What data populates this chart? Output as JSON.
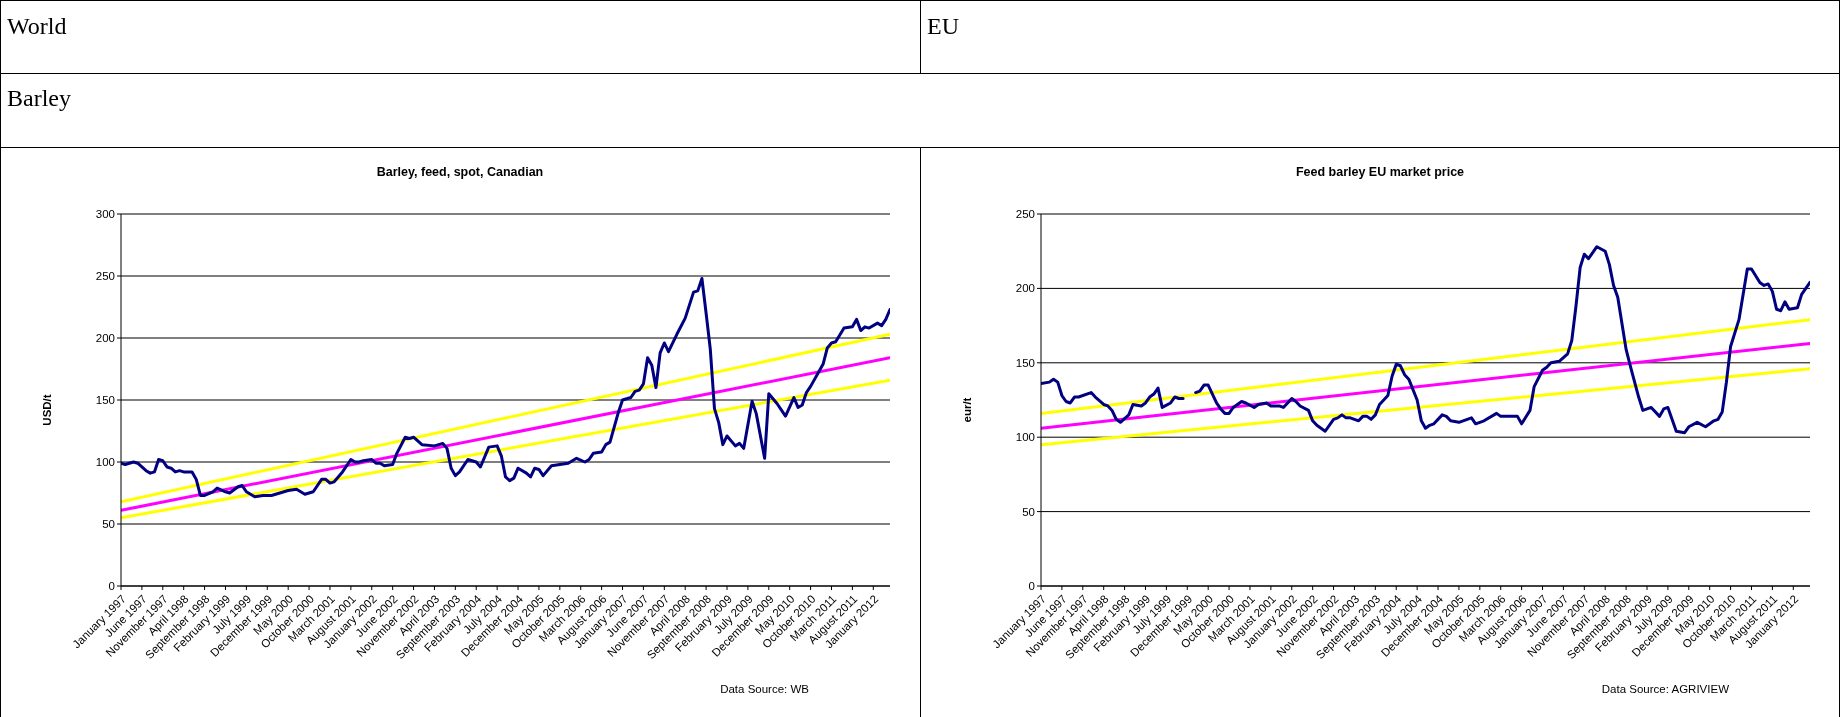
{
  "chart_data": [
    {
      "type": "line",
      "subtitle": "World",
      "title": "Barley, feed, spot, Canadian",
      "ylabel": "USD/t",
      "annotations": [
        "Barley",
        "Data Source: WB"
      ],
      "grid": "y",
      "xlim": [
        "1997-01",
        "2012-05"
      ],
      "xticks": [
        {
          "value": "1997-01",
          "label": "January 1997"
        },
        {
          "value": "1997-06",
          "label": "June 1997"
        },
        {
          "value": "1997-11",
          "label": "November 1997"
        },
        {
          "value": "1998-04",
          "label": "April 1998"
        },
        {
          "value": "1998-09",
          "label": "September 1998"
        },
        {
          "value": "1999-02",
          "label": "February 1999"
        },
        {
          "value": "1999-07",
          "label": "July 1999"
        },
        {
          "value": "1999-12",
          "label": "December 1999"
        },
        {
          "value": "2000-05",
          "label": "May 2000"
        },
        {
          "value": "2000-10",
          "label": "October 2000"
        },
        {
          "value": "2001-03",
          "label": "March 2001"
        },
        {
          "value": "2001-08",
          "label": "August 2001"
        },
        {
          "value": "2002-01",
          "label": "January 2002"
        },
        {
          "value": "2002-06",
          "label": "June 2002"
        },
        {
          "value": "2002-11",
          "label": "November 2002"
        },
        {
          "value": "2003-04",
          "label": "April 2003"
        },
        {
          "value": "2003-09",
          "label": "September 2003"
        },
        {
          "value": "2004-02",
          "label": "February 2004"
        },
        {
          "value": "2004-07",
          "label": "July 2004"
        },
        {
          "value": "2004-12",
          "label": "December 2004"
        },
        {
          "value": "2005-05",
          "label": "May 2005"
        },
        {
          "value": "2005-10",
          "label": "October 2005"
        },
        {
          "value": "2006-03",
          "label": "March 2006"
        },
        {
          "value": "2006-08",
          "label": "August 2006"
        },
        {
          "value": "2007-01",
          "label": "January 2007"
        },
        {
          "value": "2007-06",
          "label": "June 2007"
        },
        {
          "value": "2007-11",
          "label": "November 2007"
        },
        {
          "value": "2008-04",
          "label": "April 2008"
        },
        {
          "value": "2008-09",
          "label": "September 2008"
        },
        {
          "value": "2009-02",
          "label": "February 2009"
        },
        {
          "value": "2009-07",
          "label": "July 2009"
        },
        {
          "value": "2009-12",
          "label": "December 2009"
        },
        {
          "value": "2010-05",
          "label": "May 2010"
        },
        {
          "value": "2010-10",
          "label": "October 2010"
        },
        {
          "value": "2011-03",
          "label": "March 2011"
        },
        {
          "value": "2011-08",
          "label": "August 2011"
        },
        {
          "value": "2012-01",
          "label": "January 2012"
        }
      ],
      "ylim": [
        0,
        300
      ],
      "yticks": [
        0,
        50,
        100,
        150,
        200,
        250,
        300
      ],
      "series": [
        {
          "color": "#ffff00",
          "x": [
            "1997-01",
            "2012-05"
          ],
          "values": [
            68,
            203
          ]
        },
        {
          "color": "#ffff00",
          "x": [
            "1997-01",
            "2012-05"
          ],
          "values": [
            55,
            166
          ]
        },
        {
          "color": "#ff00ff",
          "x": [
            "1997-01",
            "2012-05"
          ],
          "values": [
            61,
            184
          ]
        },
        {
          "color": "#000080",
          "x": [
            "1997-01",
            "1997-02",
            "1997-04",
            "1997-05",
            "1997-07",
            "1997-08",
            "1997-09",
            "1997-10",
            "1997-11",
            "1997-12",
            "1998-01",
            "1998-02",
            "1998-03",
            "1998-04",
            "1998-06",
            "1998-07",
            "1998-08",
            "1998-09",
            "1998-11",
            "1998-12",
            "1999-02",
            "1999-03",
            "1999-05",
            "1999-06",
            "1999-07",
            "1999-09",
            "1999-11",
            "2000-01",
            "2000-03",
            "2000-05",
            "2000-07",
            "2000-09",
            "2000-11",
            "2001-01",
            "2001-02",
            "2001-03",
            "2001-04",
            "2001-06",
            "2001-08",
            "2001-09",
            "2001-10",
            "2001-11",
            "2002-01",
            "2002-02",
            "2002-03",
            "2002-04",
            "2002-06",
            "2002-07",
            "2002-09",
            "2002-10",
            "2002-11",
            "2003-01",
            "2003-04",
            "2003-06",
            "2003-07",
            "2003-08",
            "2003-09",
            "2003-10",
            "2003-12",
            "2004-02",
            "2004-03",
            "2004-05",
            "2004-07",
            "2004-08",
            "2004-09",
            "2004-10",
            "2004-11",
            "2004-12",
            "2005-02",
            "2005-03",
            "2005-04",
            "2005-05",
            "2005-06",
            "2005-08",
            "2005-10",
            "2005-12",
            "2006-02",
            "2006-04",
            "2006-05",
            "2006-06",
            "2006-08",
            "2006-09",
            "2006-10",
            "2006-12",
            "2007-01",
            "2007-03",
            "2007-04",
            "2007-05",
            "2007-06",
            "2007-07",
            "2007-08",
            "2007-09",
            "2007-10",
            "2007-11",
            "2007-12",
            "2008-02",
            "2008-04",
            "2008-06",
            "2008-07",
            "2008-08",
            "2008-09",
            "2008-10",
            "2008-11",
            "2008-12",
            "2009-01",
            "2009-02",
            "2009-04",
            "2009-05",
            "2009-06",
            "2009-08",
            "2009-09",
            "2009-11",
            "2009-12",
            "2010-02",
            "2010-04",
            "2010-06",
            "2010-07",
            "2010-08",
            "2010-09",
            "2010-10",
            "2010-12",
            "2011-01",
            "2011-02",
            "2011-03",
            "2011-04",
            "2011-06",
            "2011-08",
            "2011-09",
            "2011-10",
            "2011-11",
            "2011-12",
            "2012-02",
            "2012-03",
            "2012-04",
            "2012-05"
          ],
          "values": [
            99,
            98,
            100,
            99,
            93,
            91,
            92,
            102,
            101,
            96,
            95,
            92,
            93,
            92,
            92,
            86,
            73,
            73,
            76,
            79,
            76,
            75,
            80,
            81,
            76,
            72,
            73,
            73,
            75,
            77,
            78,
            74,
            76,
            86,
            86,
            83,
            84,
            92,
            102,
            100,
            100,
            101,
            102,
            99,
            99,
            97,
            98,
            107,
            120,
            119,
            120,
            114,
            113,
            115,
            111,
            95,
            89,
            92,
            102,
            100,
            96,
            112,
            113,
            105,
            88,
            85,
            87,
            95,
            91,
            88,
            95,
            94,
            89,
            97,
            98,
            99,
            103,
            100,
            102,
            107,
            108,
            114,
            116,
            140,
            150,
            152,
            157,
            158,
            163,
            184,
            178,
            160,
            188,
            196,
            189,
            203,
            216,
            237,
            238,
            248,
            220,
            191,
            143,
            132,
            114,
            121,
            113,
            115,
            111,
            149,
            139,
            103,
            155,
            147,
            137,
            152,
            144,
            146,
            156,
            161,
            173,
            179,
            192,
            196,
            197,
            208,
            209,
            215,
            206,
            209,
            208,
            212,
            210,
            215,
            223
          ]
        }
      ]
    },
    {
      "type": "line",
      "subtitle": "EU",
      "title": "Feed barley EU market price",
      "ylabel": "eur/t",
      "annotations": [
        "Data Source: AGRIVIEW"
      ],
      "grid": "y",
      "xlim": [
        "1997-01",
        "2012-05"
      ],
      "xticks": [
        {
          "value": "1997-01",
          "label": "January 1997"
        },
        {
          "value": "1997-06",
          "label": "June 1997"
        },
        {
          "value": "1997-11",
          "label": "November 1997"
        },
        {
          "value": "1998-04",
          "label": "April 1998"
        },
        {
          "value": "1998-09",
          "label": "September 1998"
        },
        {
          "value": "1999-02",
          "label": "February 1999"
        },
        {
          "value": "1999-07",
          "label": "July 1999"
        },
        {
          "value": "1999-12",
          "label": "December 1999"
        },
        {
          "value": "2000-05",
          "label": "May 2000"
        },
        {
          "value": "2000-10",
          "label": "October 2000"
        },
        {
          "value": "2001-03",
          "label": "March 2001"
        },
        {
          "value": "2001-08",
          "label": "August 2001"
        },
        {
          "value": "2002-01",
          "label": "January 2002"
        },
        {
          "value": "2002-06",
          "label": "June 2002"
        },
        {
          "value": "2002-11",
          "label": "November 2002"
        },
        {
          "value": "2003-04",
          "label": "April 2003"
        },
        {
          "value": "2003-09",
          "label": "September 2003"
        },
        {
          "value": "2004-02",
          "label": "February 2004"
        },
        {
          "value": "2004-07",
          "label": "July 2004"
        },
        {
          "value": "2004-12",
          "label": "December 2004"
        },
        {
          "value": "2005-05",
          "label": "May 2005"
        },
        {
          "value": "2005-10",
          "label": "October 2005"
        },
        {
          "value": "2006-03",
          "label": "March 2006"
        },
        {
          "value": "2006-08",
          "label": "August 2006"
        },
        {
          "value": "2007-01",
          "label": "January 2007"
        },
        {
          "value": "2007-06",
          "label": "June 2007"
        },
        {
          "value": "2007-11",
          "label": "November 2007"
        },
        {
          "value": "2008-04",
          "label": "April 2008"
        },
        {
          "value": "2008-09",
          "label": "September 2008"
        },
        {
          "value": "2009-02",
          "label": "February 2009"
        },
        {
          "value": "2009-07",
          "label": "July 2009"
        },
        {
          "value": "2009-12",
          "label": "December 2009"
        },
        {
          "value": "2010-05",
          "label": "May 2010"
        },
        {
          "value": "2010-10",
          "label": "October 2010"
        },
        {
          "value": "2011-03",
          "label": "March 2011"
        },
        {
          "value": "2011-08",
          "label": "August 2011"
        },
        {
          "value": "2012-01",
          "label": "January 2012"
        }
      ],
      "ylim": [
        0,
        250
      ],
      "yticks": [
        0,
        50,
        100,
        150,
        200,
        250
      ],
      "series": [
        {
          "color": "#ffff00",
          "x": [
            "1997-01",
            "2012-05"
          ],
          "values": [
            116,
            179
          ]
        },
        {
          "color": "#ffff00",
          "x": [
            "1997-01",
            "2012-05"
          ],
          "values": [
            95,
            146
          ]
        },
        {
          "color": "#ff00ff",
          "x": [
            "1997-01",
            "2012-05"
          ],
          "values": [
            106,
            163
          ]
        },
        {
          "color": "#000080",
          "x": [
            "1997-01",
            "1997-03",
            "1997-04",
            "1997-05",
            "1997-06",
            "1997-07",
            "1997-08",
            "1997-09",
            "1997-10",
            "1998-01",
            "1998-02",
            "1998-04",
            "1998-05",
            "1998-06",
            "1998-07",
            "1998-08",
            "1998-10",
            "1998-11",
            "1999-01",
            "1999-02",
            "1999-03",
            "1999-04",
            "1999-05",
            "1999-06",
            "1999-08",
            "1999-09",
            "1999-10",
            "1999-11",
            "1999-12",
            "2000-01",
            "2000-02",
            "2000-03",
            "2000-04",
            "2000-05",
            "2000-07",
            "2000-08",
            "2000-09",
            "2000-10",
            "2000-11",
            "2001-01",
            "2001-02",
            "2001-04",
            "2001-05",
            "2001-07",
            "2001-08",
            "2001-10",
            "2001-11",
            "2002-01",
            "2002-02",
            "2002-03",
            "2002-05",
            "2002-06",
            "2002-07",
            "2002-09",
            "2002-11",
            "2002-12",
            "2003-01",
            "2003-02",
            "2003-03",
            "2003-05",
            "2003-06",
            "2003-07",
            "2003-08",
            "2003-09",
            "2003-10",
            "2003-12",
            "2004-01",
            "2004-02",
            "2004-03",
            "2004-04",
            "2004-05",
            "2004-07",
            "2004-08",
            "2004-09",
            "2004-10",
            "2004-11",
            "2005-01",
            "2005-02",
            "2005-03",
            "2005-05",
            "2005-06",
            "2005-08",
            "2005-09",
            "2005-11",
            "2006-02",
            "2006-03",
            "2006-05",
            "2006-07",
            "2006-08",
            "2006-10",
            "2006-11",
            "2007-01",
            "2007-02",
            "2007-03",
            "2007-05",
            "2007-07",
            "2007-08",
            "2007-09",
            "2007-10",
            "2007-11",
            "2007-12",
            "2008-02",
            "2008-04",
            "2008-05",
            "2008-06",
            "2008-07",
            "2008-09",
            "2008-10",
            "2008-12",
            "2009-01",
            "2009-03",
            "2009-05",
            "2009-06",
            "2009-07",
            "2009-09",
            "2009-11",
            "2009-12",
            "2010-02",
            "2010-04",
            "2010-06",
            "2010-07",
            "2010-08",
            "2010-09",
            "2010-10",
            "2010-12",
            "2011-02",
            "2011-03",
            "2011-05",
            "2011-06",
            "2011-07",
            "2011-08",
            "2011-09",
            "2011-10",
            "2011-11",
            "2011-12",
            "2012-02",
            "2012-03",
            "2012-05"
          ],
          "values": [
            136,
            137,
            139,
            137,
            128,
            124,
            123,
            127,
            127,
            130,
            127,
            122,
            121,
            118,
            112,
            110,
            115,
            122,
            121,
            123,
            127,
            129,
            133,
            120,
            123,
            127,
            126,
            126,
            null,
            null,
            130,
            131,
            135,
            135,
            123,
            119,
            116,
            116,
            120,
            124,
            123,
            120,
            122,
            123,
            121,
            121,
            120,
            126,
            124,
            121,
            118,
            111,
            108,
            104,
            112,
            113,
            115,
            113,
            113,
            111,
            114,
            114,
            112,
            115,
            122,
            128,
            141,
            149,
            148,
            142,
            139,
            125,
            111,
            106,
            108,
            109,
            115,
            114,
            111,
            110,
            111,
            113,
            109,
            111,
            116,
            114,
            114,
            114,
            109,
            118,
            134,
            145,
            147,
            150,
            151,
            156,
            165,
            188,
            214,
            223,
            220,
            228,
            225,
            216,
            202,
            194,
            159,
            148,
            127,
            118,
            120,
            114,
            119,
            120,
            104,
            103,
            107,
            110,
            107,
            111,
            112,
            117,
            137,
            161,
            179,
            213,
            213,
            204,
            202,
            203,
            198,
            186,
            185,
            191,
            186,
            187,
            196,
            204
          ]
        }
      ]
    }
  ]
}
